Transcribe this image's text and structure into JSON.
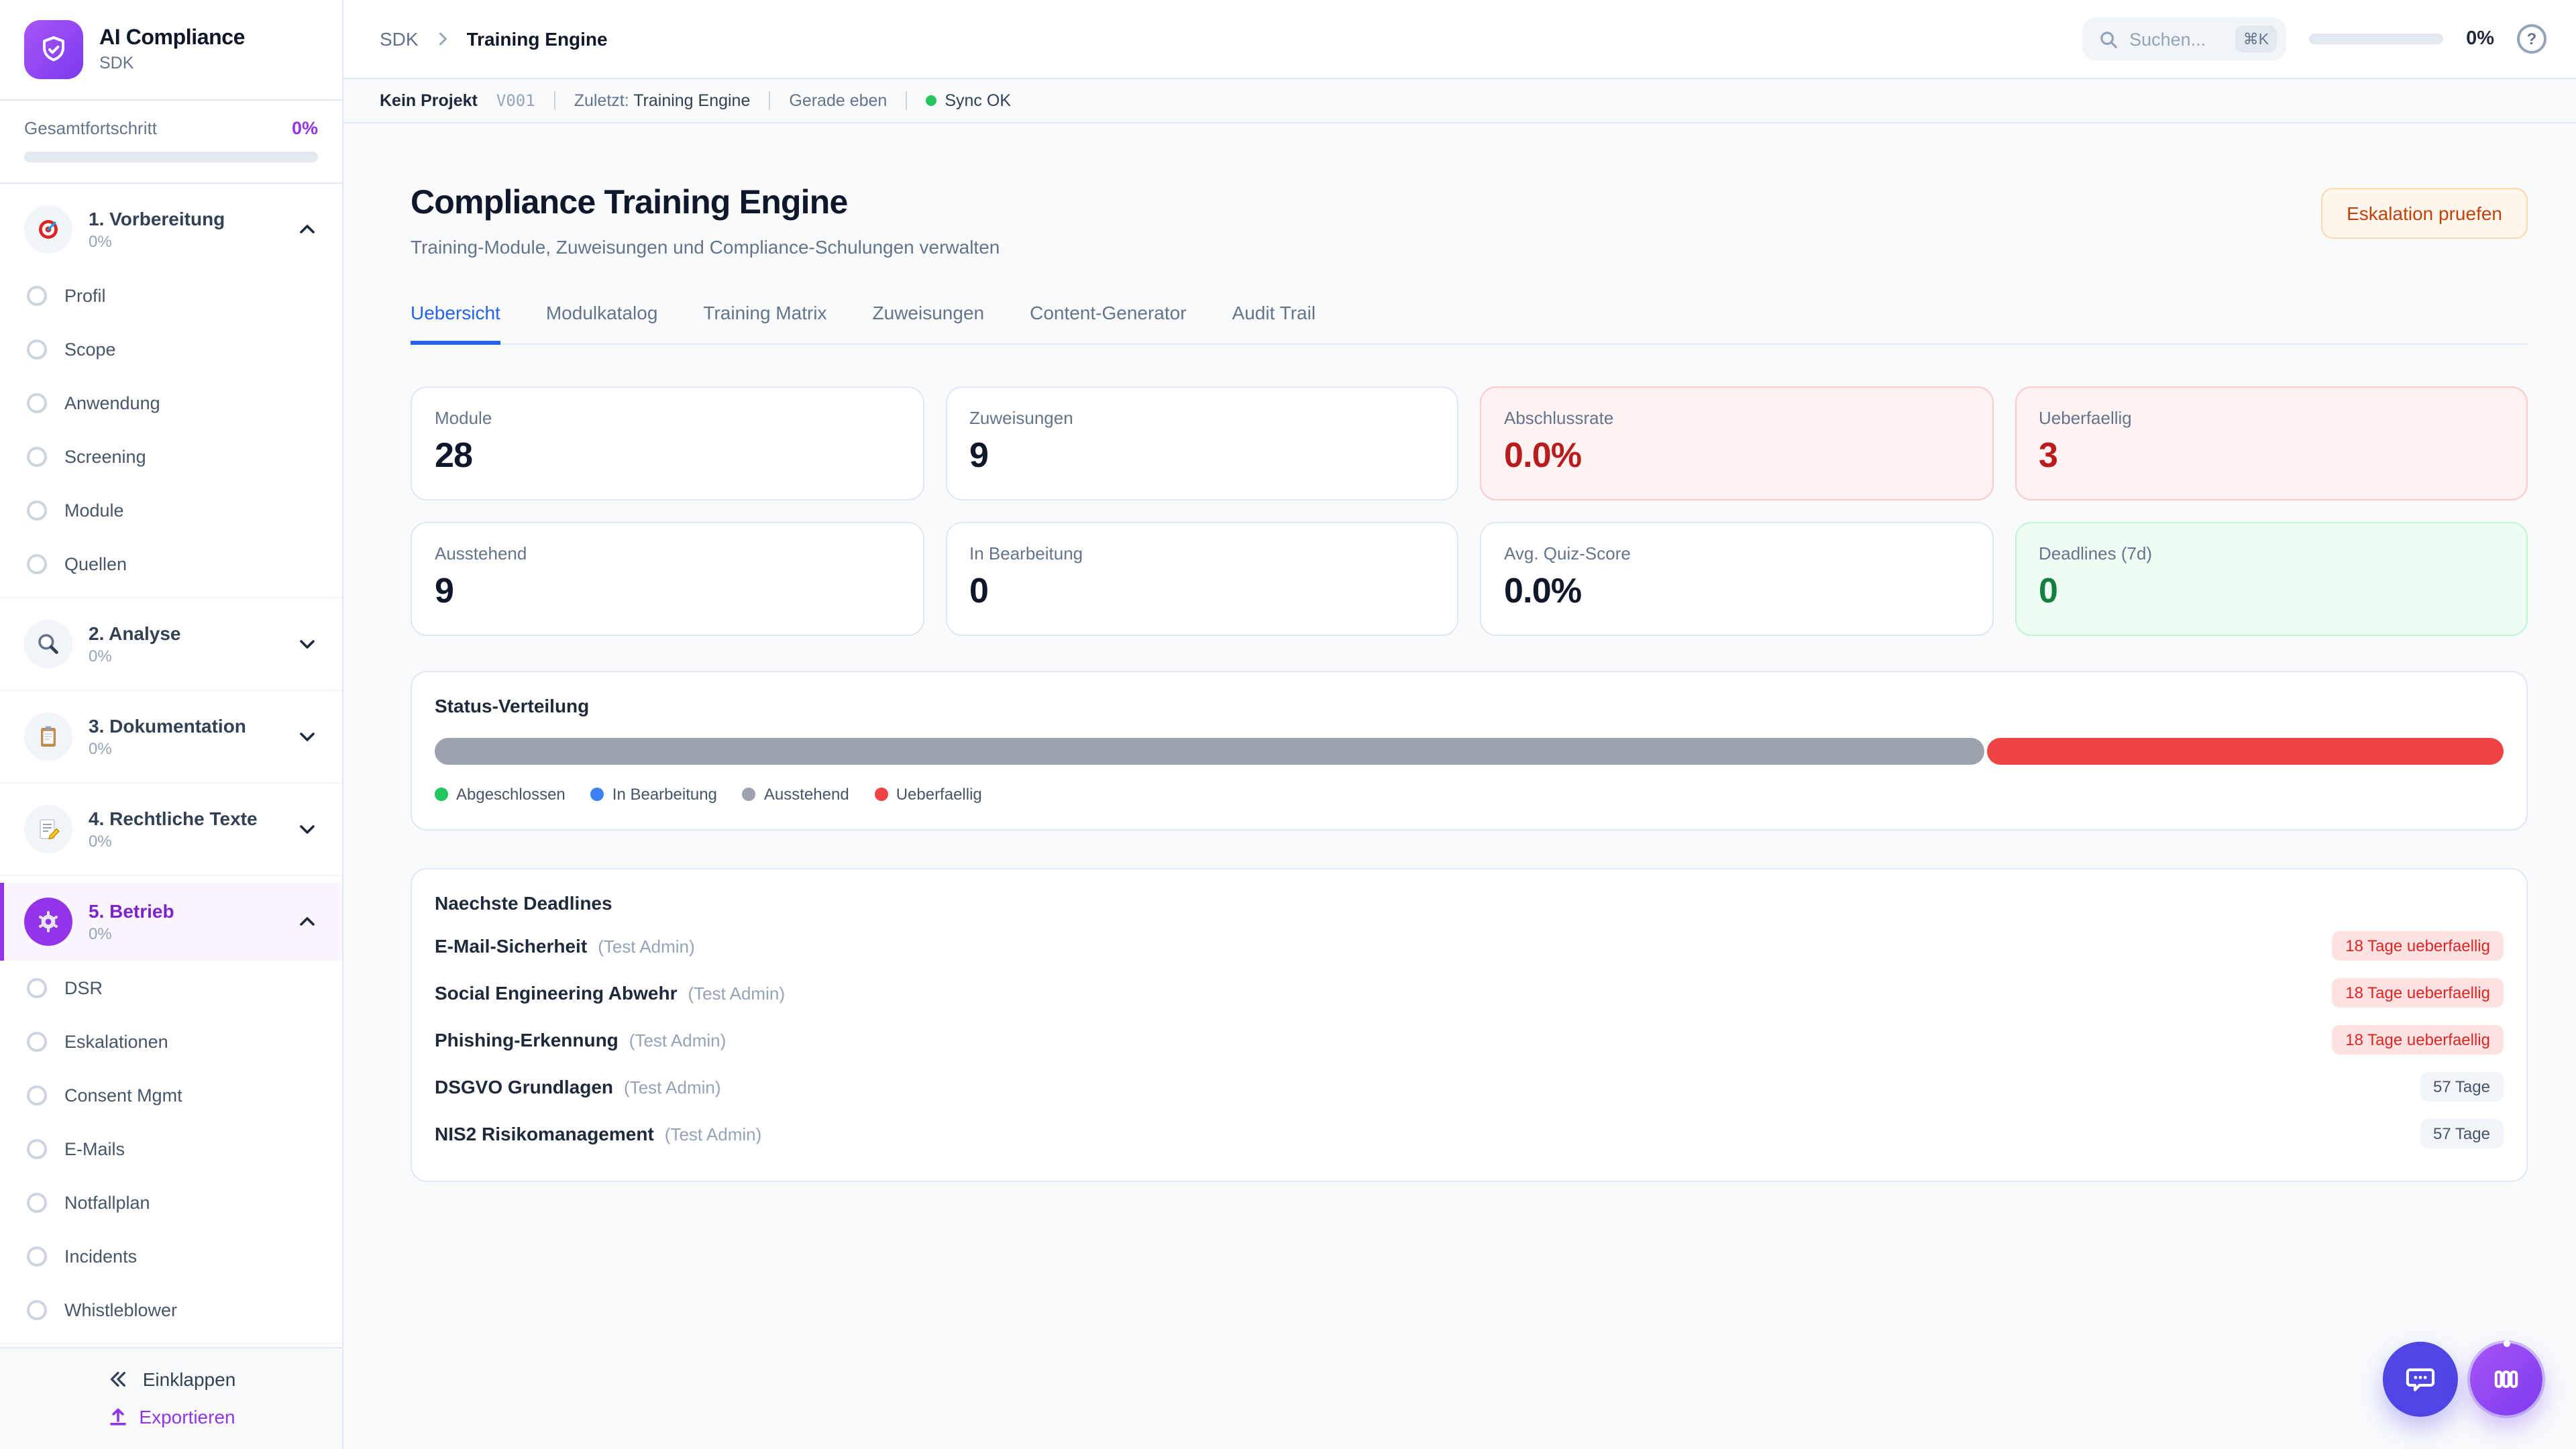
{
  "sidebar": {
    "app_title": "AI Compliance",
    "app_subtitle": "SDK",
    "overall_progress_label": "Gesamtfortschritt",
    "overall_progress_value": "0%",
    "overall_progress_pct": 0,
    "sections": [
      {
        "icon": "target-icon",
        "label": "1. Vorbereitung",
        "progress": "0%",
        "expanded": true,
        "active": false,
        "items": [
          "Profil",
          "Scope",
          "Anwendung",
          "Screening",
          "Module",
          "Quellen"
        ]
      },
      {
        "icon": "magnifier-icon",
        "label": "2. Analyse",
        "progress": "0%",
        "expanded": false,
        "active": false,
        "items": []
      },
      {
        "icon": "clipboard-icon",
        "label": "3. Dokumentation",
        "progress": "0%",
        "expanded": false,
        "active": false,
        "items": []
      },
      {
        "icon": "memo-icon",
        "label": "4. Rechtliche Texte",
        "progress": "0%",
        "expanded": false,
        "active": false,
        "items": []
      },
      {
        "icon": "gear-icon",
        "label": "5. Betrieb",
        "progress": "0%",
        "expanded": true,
        "active": true,
        "items": [
          "DSR",
          "Eskalationen",
          "Consent Mgmt",
          "E-Mails",
          "Notfallplan",
          "Incidents",
          "Whistleblower"
        ]
      }
    ],
    "collapse_label": "Einklappen",
    "export_label": "Exportieren",
    "accent_color": "#9333EA"
  },
  "topbar": {
    "breadcrumb_root": "SDK",
    "breadcrumb_current": "Training Engine",
    "search_placeholder": "Suchen...",
    "search_shortcut": "⌘K",
    "progress_value": "0%",
    "progress_pct": 0
  },
  "statusbar": {
    "project": "Kein Projekt",
    "version": "V001",
    "last_label": "Zuletzt:",
    "last_value": "Training Engine",
    "time": "Gerade eben",
    "sync": "Sync OK",
    "sync_color": "#22C55E"
  },
  "main": {
    "title": "Compliance Training Engine",
    "subtitle": "Training-Module, Zuweisungen und Compliance-Schulungen verwalten",
    "action_button": "Eskalation pruefen",
    "tabs": [
      {
        "label": "Uebersicht",
        "active": true
      },
      {
        "label": "Modulkatalog",
        "active": false
      },
      {
        "label": "Training Matrix",
        "active": false
      },
      {
        "label": "Zuweisungen",
        "active": false
      },
      {
        "label": "Content-Generator",
        "active": false
      },
      {
        "label": "Audit Trail",
        "active": false
      }
    ],
    "stats": [
      {
        "label": "Module",
        "value": "28",
        "variant": "default"
      },
      {
        "label": "Zuweisungen",
        "value": "9",
        "variant": "default"
      },
      {
        "label": "Abschlussrate",
        "value": "0.0%",
        "variant": "danger"
      },
      {
        "label": "Ueberfaellig",
        "value": "3",
        "variant": "danger"
      },
      {
        "label": "Ausstehend",
        "value": "9",
        "variant": "default"
      },
      {
        "label": "In Bearbeitung",
        "value": "0",
        "variant": "default"
      },
      {
        "label": "Avg. Quiz-Score",
        "value": "0.0%",
        "variant": "default"
      },
      {
        "label": "Deadlines (7d)",
        "value": "0",
        "variant": "success"
      }
    ],
    "status_distribution": {
      "title": "Status-Verteilung",
      "segments": [
        {
          "label": "Ausstehend",
          "pct": 75,
          "color": "#9CA3AF"
        },
        {
          "label": "Ueberfaellig",
          "pct": 25,
          "color": "#EF4444"
        }
      ],
      "legend": [
        {
          "label": "Abgeschlossen",
          "color": "#22C55E"
        },
        {
          "label": "In Bearbeitung",
          "color": "#3B82F6"
        },
        {
          "label": "Ausstehend",
          "color": "#9CA3AF"
        },
        {
          "label": "Ueberfaellig",
          "color": "#EF4444"
        }
      ]
    },
    "deadlines": {
      "title": "Naechste Deadlines",
      "rows": [
        {
          "module": "E-Mail-Sicherheit",
          "assignee": "(Test Admin)",
          "badge": "18 Tage ueberfaellig",
          "badge_variant": "danger"
        },
        {
          "module": "Social Engineering Abwehr",
          "assignee": "(Test Admin)",
          "badge": "18 Tage ueberfaellig",
          "badge_variant": "danger"
        },
        {
          "module": "Phishing-Erkennung",
          "assignee": "(Test Admin)",
          "badge": "18 Tage ueberfaellig",
          "badge_variant": "danger"
        },
        {
          "module": "DSGVO Grundlagen",
          "assignee": "(Test Admin)",
          "badge": "57 Tage",
          "badge_variant": "neutral"
        },
        {
          "module": "NIS2 Risikomanagement",
          "assignee": "(Test Admin)",
          "badge": "57 Tage",
          "badge_variant": "neutral"
        }
      ]
    }
  }
}
